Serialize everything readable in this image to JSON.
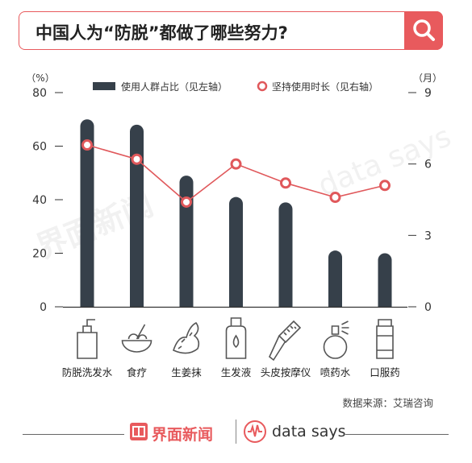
{
  "header": {
    "title": "中国人为“防脱”都做了哪些努力?"
  },
  "chart_data": {
    "type": "bar",
    "categories": [
      "防脱洗发水",
      "食疗",
      "生姜抹",
      "生发液",
      "头皮按摩仪",
      "喷药水",
      "口服药"
    ],
    "series": [
      {
        "name": "使用人群占比（见左轴）",
        "kind": "bar",
        "axis": "left",
        "values": [
          70,
          68,
          49,
          41,
          39,
          21,
          20
        ]
      },
      {
        "name": "坚持使用时长（见右轴）",
        "kind": "line",
        "axis": "right",
        "values": [
          6.8,
          6.2,
          4.4,
          6.0,
          5.2,
          4.6,
          5.1
        ]
      }
    ],
    "left_axis": {
      "unit": "（%）",
      "ticks": [
        "0",
        "20",
        "40",
        "60",
        "80"
      ],
      "ylim": [
        0,
        80
      ]
    },
    "right_axis": {
      "unit": "（月）",
      "ticks": [
        "0",
        "3",
        "6",
        "9"
      ],
      "ylim": [
        0,
        9
      ]
    },
    "legend_position": "top",
    "colors": {
      "bar": "#36404a",
      "line": "#e0585b",
      "marker_edge": "#e0585b",
      "marker_fill": "#ffffff"
    }
  },
  "footer": {
    "source": "数据来源：艾瑞咨询",
    "brand_cn": "界面新闻",
    "brand_en": "data says"
  },
  "watermarks": {
    "cn": "界面新闻",
    "en": "data says"
  },
  "icons": [
    "shampoo-bottle-icon",
    "food-bowl-icon",
    "ginger-icon",
    "hair-tonic-icon",
    "massage-comb-icon",
    "spray-bottle-icon",
    "pill-bottle-icon"
  ]
}
